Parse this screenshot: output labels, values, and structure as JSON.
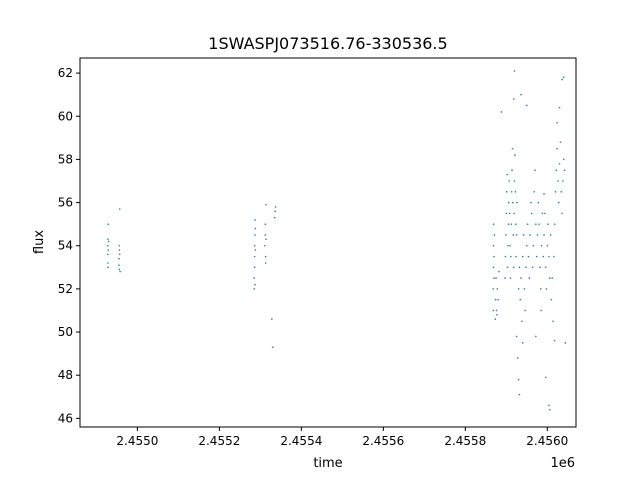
{
  "chart_data": {
    "type": "scatter",
    "title": "1SWASPJ073516.76-330536.5",
    "xlabel": "time",
    "ylabel": "flux",
    "x_offset_label": "1e6",
    "xlim": [
      2.45486,
      2.45607
    ],
    "ylim": [
      45.6,
      62.7
    ],
    "x_ticks": [
      2.455,
      2.4552,
      2.4554,
      2.4556,
      2.4558,
      2.456
    ],
    "x_tick_labels": [
      "2.4550",
      "2.4552",
      "2.4554",
      "2.4556",
      "2.4558",
      "2.4560"
    ],
    "y_ticks": [
      46,
      48,
      50,
      52,
      54,
      56,
      58,
      60,
      62
    ],
    "y_tick_labels": [
      "46",
      "48",
      "50",
      "52",
      "54",
      "56",
      "58",
      "60",
      "62"
    ],
    "grid": false,
    "marker_color": "#1f77b4",
    "series": [
      {
        "name": "",
        "points": [
          [
            2.454928,
            53.2
          ],
          [
            2.454928,
            53.6
          ],
          [
            2.454928,
            54.0
          ],
          [
            2.454928,
            54.3
          ],
          [
            2.454928,
            53.0
          ],
          [
            2.454929,
            53.8
          ],
          [
            2.454929,
            55.0
          ],
          [
            2.45493,
            54.2
          ],
          [
            2.454955,
            53.1
          ],
          [
            2.454955,
            53.4
          ],
          [
            2.454956,
            53.8
          ],
          [
            2.454956,
            52.9
          ],
          [
            2.454956,
            54.0
          ],
          [
            2.454957,
            55.7
          ],
          [
            2.454957,
            53.6
          ],
          [
            2.454958,
            52.8
          ],
          [
            2.455285,
            52.0
          ],
          [
            2.455285,
            52.5
          ],
          [
            2.455286,
            53.0
          ],
          [
            2.455286,
            53.5
          ],
          [
            2.455286,
            54.0
          ],
          [
            2.455287,
            54.5
          ],
          [
            2.455287,
            55.2
          ],
          [
            2.455287,
            52.2
          ],
          [
            2.455288,
            53.8
          ],
          [
            2.455288,
            54.8
          ],
          [
            2.455311,
            54.0
          ],
          [
            2.455312,
            54.5
          ],
          [
            2.455312,
            55.0
          ],
          [
            2.455313,
            53.5
          ],
          [
            2.455313,
            53.2
          ],
          [
            2.455314,
            55.9
          ],
          [
            2.455314,
            54.3
          ],
          [
            2.455328,
            50.6
          ],
          [
            2.45533,
            49.3
          ],
          [
            2.455335,
            55.3
          ],
          [
            2.455336,
            55.6
          ],
          [
            2.455337,
            55.8
          ],
          [
            2.455868,
            51.0
          ],
          [
            2.455868,
            52.0
          ],
          [
            2.455869,
            53.0
          ],
          [
            2.455869,
            54.0
          ],
          [
            2.455869,
            55.0
          ],
          [
            2.45587,
            53.5
          ],
          [
            2.45587,
            52.5
          ],
          [
            2.455871,
            54.5
          ],
          [
            2.455873,
            50.6
          ],
          [
            2.455874,
            51.5
          ],
          [
            2.455875,
            52.5
          ],
          [
            2.455876,
            51.0
          ],
          [
            2.455877,
            50.8
          ],
          [
            2.455878,
            52.0
          ],
          [
            2.45588,
            51.5
          ],
          [
            2.455882,
            52.8
          ],
          [
            2.455888,
            60.2
          ],
          [
            2.455897,
            52.5
          ],
          [
            2.455898,
            53.5
          ],
          [
            2.455899,
            54.5
          ],
          [
            2.4559,
            55.5
          ],
          [
            2.455901,
            56.5
          ],
          [
            2.455902,
            57.3
          ],
          [
            2.455903,
            53.0
          ],
          [
            2.455904,
            54.0
          ],
          [
            2.455905,
            55.0
          ],
          [
            2.455906,
            56.0
          ],
          [
            2.455907,
            57.0
          ],
          [
            2.455908,
            55.5
          ],
          [
            2.455909,
            54.0
          ],
          [
            2.45591,
            52.5
          ],
          [
            2.455911,
            53.5
          ],
          [
            2.455912,
            55.0
          ],
          [
            2.455913,
            56.5
          ],
          [
            2.455914,
            57.5
          ],
          [
            2.455915,
            58.5
          ],
          [
            2.455916,
            56.0
          ],
          [
            2.455917,
            54.5
          ],
          [
            2.455918,
            53.0
          ],
          [
            2.455919,
            55.5
          ],
          [
            2.45592,
            57.0
          ],
          [
            2.455921,
            58.2
          ],
          [
            2.455922,
            56.5
          ],
          [
            2.455923,
            55.0
          ],
          [
            2.455924,
            53.5
          ],
          [
            2.455925,
            54.5
          ],
          [
            2.455926,
            56.0
          ],
          [
            2.455918,
            60.8
          ],
          [
            2.45592,
            62.1
          ],
          [
            2.455925,
            49.8
          ],
          [
            2.455928,
            48.8
          ],
          [
            2.45593,
            47.8
          ],
          [
            2.45593,
            52.0
          ],
          [
            2.455932,
            53.0
          ],
          [
            2.455934,
            51.5
          ],
          [
            2.455936,
            52.5
          ],
          [
            2.455938,
            50.5
          ],
          [
            2.45594,
            53.5
          ],
          [
            2.455942,
            54.5
          ],
          [
            2.455944,
            52.0
          ],
          [
            2.455946,
            51.0
          ],
          [
            2.455948,
            53.0
          ],
          [
            2.455932,
            47.1
          ],
          [
            2.45594,
            49.5
          ],
          [
            2.455936,
            61.0
          ],
          [
            2.45595,
            60.5
          ],
          [
            2.45595,
            54.0
          ],
          [
            2.455952,
            55.0
          ],
          [
            2.455954,
            53.5
          ],
          [
            2.455956,
            52.5
          ],
          [
            2.455958,
            54.5
          ],
          [
            2.45596,
            56.0
          ],
          [
            2.455962,
            55.5
          ],
          [
            2.455964,
            53.0
          ],
          [
            2.455966,
            54.0
          ],
          [
            2.455968,
            56.5
          ],
          [
            2.45597,
            57.5
          ],
          [
            2.455972,
            55.0
          ],
          [
            2.455974,
            53.5
          ],
          [
            2.455976,
            54.5
          ],
          [
            2.455978,
            56.0
          ],
          [
            2.45598,
            55.0
          ],
          [
            2.455982,
            53.0
          ],
          [
            2.455984,
            52.0
          ],
          [
            2.455986,
            54.0
          ],
          [
            2.455988,
            55.5
          ],
          [
            2.455972,
            49.8
          ],
          [
            2.455985,
            51.0
          ],
          [
            2.45599,
            53.5
          ],
          [
            2.455992,
            54.5
          ],
          [
            2.455994,
            55.5
          ],
          [
            2.455996,
            53.0
          ],
          [
            2.455998,
            52.0
          ],
          [
            2.456,
            54.0
          ],
          [
            2.456002,
            55.0
          ],
          [
            2.456004,
            53.5
          ],
          [
            2.456006,
            52.5
          ],
          [
            2.456008,
            54.5
          ],
          [
            2.455996,
            47.9
          ],
          [
            2.456004,
            46.6
          ],
          [
            2.456006,
            46.4
          ],
          [
            2.455992,
            56.4
          ],
          [
            2.45601,
            51.5
          ],
          [
            2.456012,
            52.5
          ],
          [
            2.456014,
            50.5
          ],
          [
            2.456016,
            53.5
          ],
          [
            2.456018,
            55.0
          ],
          [
            2.45602,
            56.5
          ],
          [
            2.456022,
            57.5
          ],
          [
            2.456024,
            58.5
          ],
          [
            2.456026,
            57.0
          ],
          [
            2.456028,
            56.0
          ],
          [
            2.45603,
            57.8
          ],
          [
            2.456032,
            58.8
          ],
          [
            2.456034,
            56.5
          ],
          [
            2.456036,
            55.5
          ],
          [
            2.456038,
            57.0
          ],
          [
            2.45604,
            58.0
          ],
          [
            2.456042,
            57.5
          ],
          [
            2.456018,
            49.6
          ],
          [
            2.456024,
            59.7
          ],
          [
            2.45603,
            60.4
          ],
          [
            2.456036,
            61.7
          ],
          [
            2.45604,
            61.8
          ],
          [
            2.456044,
            49.5
          ]
        ]
      }
    ]
  }
}
